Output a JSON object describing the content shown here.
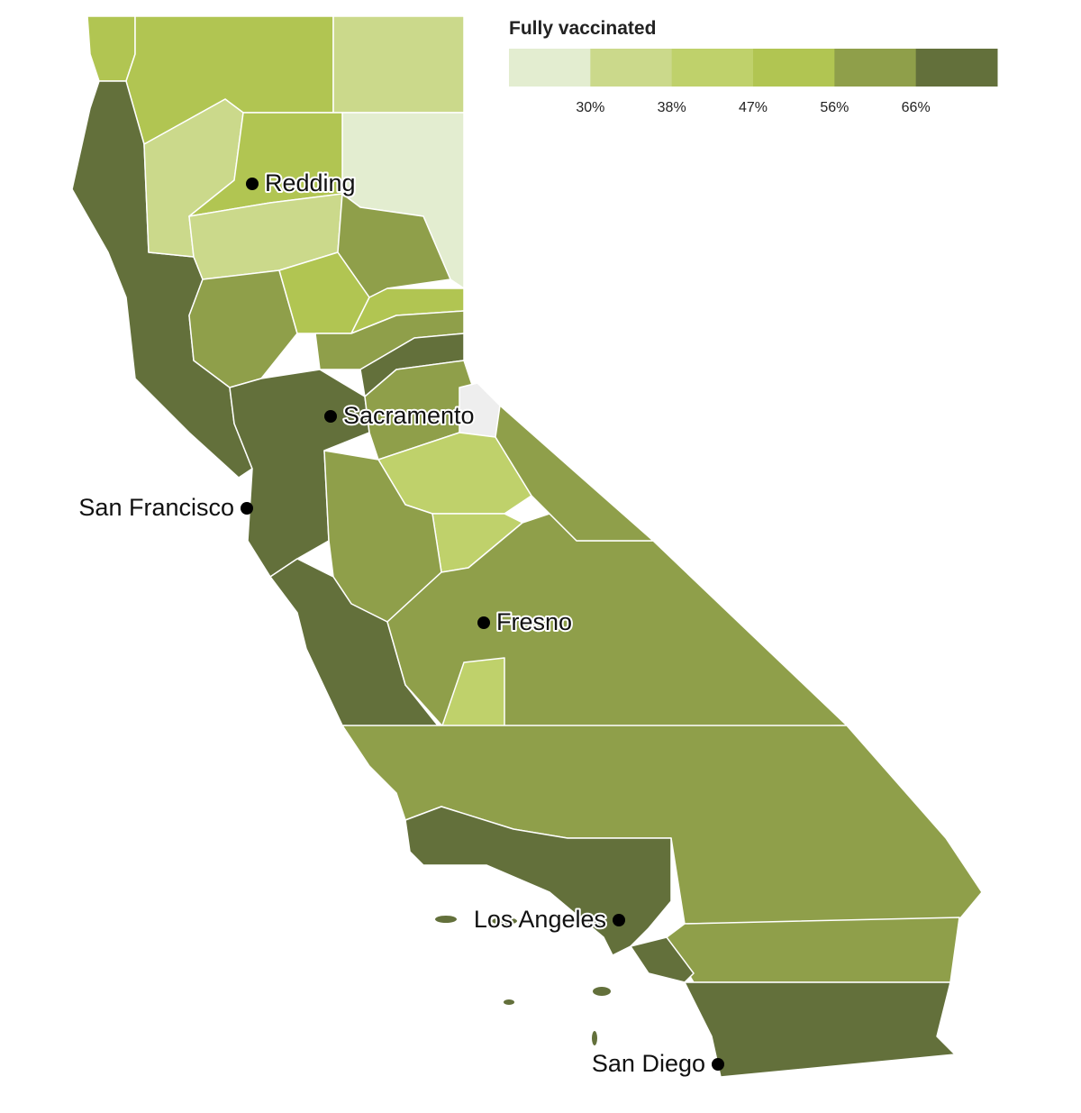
{
  "legend": {
    "title": "Fully vaccinated",
    "colors": [
      "#e3edd0",
      "#cbd98b",
      "#bfd16b",
      "#b1c552",
      "#8f9f4a",
      "#63703b"
    ],
    "breaks": [
      {
        "value": 30,
        "label": "30%"
      },
      {
        "value": 38,
        "label": "38%"
      },
      {
        "value": 47,
        "label": "47%"
      },
      {
        "value": 56,
        "label": "56%"
      },
      {
        "value": 66,
        "label": "66%"
      }
    ]
  },
  "cities": [
    {
      "name": "Redding"
    },
    {
      "name": "Sacramento"
    },
    {
      "name": "San Francisco"
    },
    {
      "name": "Fresno"
    },
    {
      "name": "Los Angeles"
    },
    {
      "name": "San Diego"
    }
  ]
}
